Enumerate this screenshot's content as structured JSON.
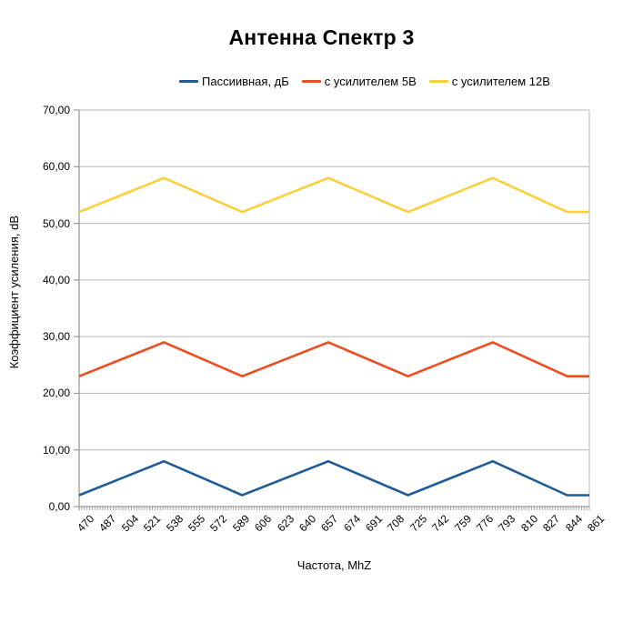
{
  "title": "Антенна Спектр 3",
  "legend": {
    "items": [
      {
        "label": "Пассиивная, дБ",
        "color": "#1F5B99"
      },
      {
        "label": "с усилителем 5В",
        "color": "#EE4D22"
      },
      {
        "label": "с усилителем 12В",
        "color": "#FCD03A"
      }
    ]
  },
  "chart_data": {
    "type": "line",
    "title": "Антенна Спектр 3",
    "xlabel": "Частота, MhZ",
    "ylabel": "Коэффициент усиления, dB",
    "x_tick_labels": [
      "470",
      "487",
      "504",
      "521",
      "538",
      "555",
      "572",
      "589",
      "606",
      "623",
      "640",
      "657",
      "674",
      "691",
      "708",
      "725",
      "742",
      "759",
      "776",
      "793",
      "810",
      "827",
      "844",
      "861"
    ],
    "xlim": [
      470,
      861
    ],
    "y_ticks": [
      0,
      10,
      20,
      30,
      40,
      50,
      60,
      70
    ],
    "y_tick_labels": [
      "0,00",
      "10,00",
      "20,00",
      "30,00",
      "40,00",
      "50,00",
      "60,00",
      "70,00"
    ],
    "ylim": [
      0,
      70
    ],
    "grid": "horizontal",
    "legend_position": "top",
    "colors": {
      "gridline": "#b6b6b6",
      "axis": "#9a9a9a"
    },
    "series": [
      {
        "name": "Пассиивная, дБ",
        "color": "#1F5B99",
        "points": [
          [
            470,
            2
          ],
          [
            535,
            8
          ],
          [
            595,
            2
          ],
          [
            661,
            8
          ],
          [
            722,
            2
          ],
          [
            787,
            8
          ],
          [
            844,
            2
          ],
          [
            861,
            2
          ]
        ]
      },
      {
        "name": "с усилителем 5В",
        "color": "#EE4D22",
        "points": [
          [
            470,
            23
          ],
          [
            535,
            29
          ],
          [
            595,
            23
          ],
          [
            661,
            29
          ],
          [
            722,
            23
          ],
          [
            787,
            29
          ],
          [
            844,
            23
          ],
          [
            861,
            23
          ]
        ]
      },
      {
        "name": "с усилителем 12В",
        "color": "#FCD03A",
        "points": [
          [
            470,
            52
          ],
          [
            535,
            58
          ],
          [
            595,
            52
          ],
          [
            661,
            58
          ],
          [
            722,
            52
          ],
          [
            787,
            58
          ],
          [
            844,
            52
          ],
          [
            861,
            52
          ]
        ]
      }
    ]
  }
}
